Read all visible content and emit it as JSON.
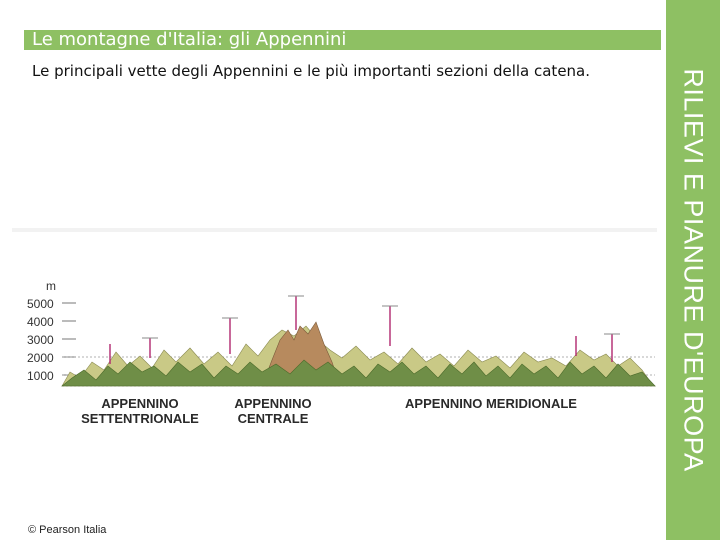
{
  "header": {
    "title": "Le montagne d'Italia: gli Appennini"
  },
  "intro": {
    "text": "Le principali vette degli Appennini e le più importanti sezioni della catena."
  },
  "side": {
    "label": "RILIEVI E PIANURE D'EUROPA"
  },
  "profile": {
    "unit": "m",
    "ticks": [
      "5000",
      "4000",
      "3000",
      "2000",
      "1000"
    ],
    "sections": [
      {
        "line1": "APPENNINO",
        "line2": "SETTENTRIONALE"
      },
      {
        "line1": "APPENNINO",
        "line2": "CENTRALE"
      },
      {
        "line1": "APPENNINO MERIDIONALE"
      }
    ],
    "colors": {
      "relief_light": "#c9c986",
      "relief_dark": "#6f8e47",
      "central_peak": "#b78a5e",
      "peak_marker": "#b0286f"
    }
  },
  "footer": {
    "copyright": "© Pearson Italia"
  }
}
